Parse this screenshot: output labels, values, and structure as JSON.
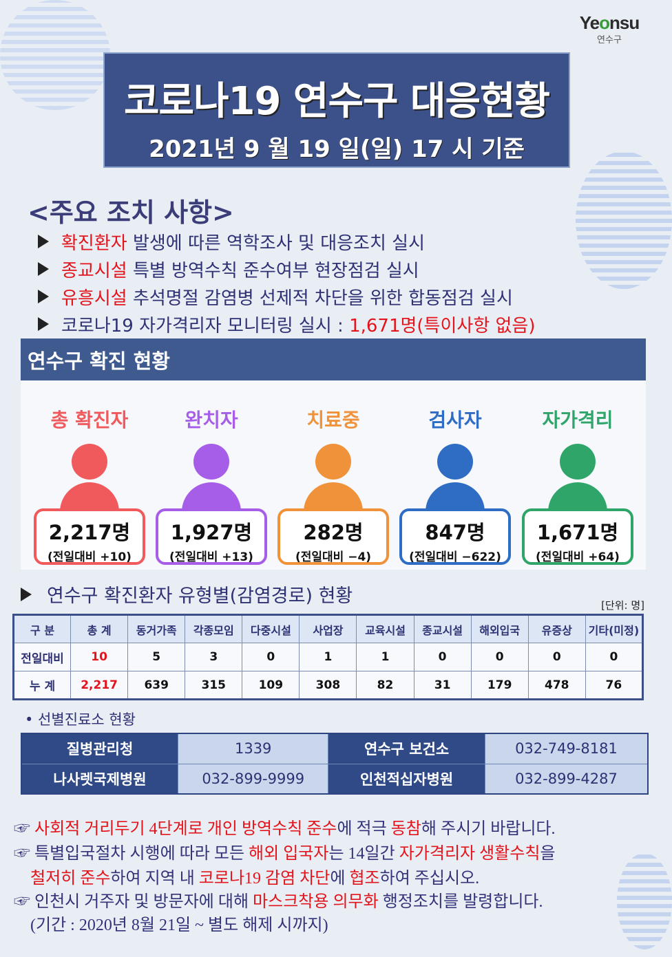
{
  "logo": {
    "main_a": "Ye",
    "main_b": "o",
    "main_c": "nsu",
    "sub": "연수구"
  },
  "title": {
    "main": "코로나19 연수구 대응현황",
    "date": "2021년 9 월 19 일(일) 17 시 기준"
  },
  "measures": {
    "title": "<주요 조치 사항>",
    "items": [
      [
        {
          "t": "확진환자",
          "red": true
        },
        {
          "t": " 발생에 따른 역학조사 및 대응조치 실시"
        }
      ],
      [
        {
          "t": "종교시설",
          "red": true
        },
        {
          "t": " 특별 방역수칙 준수여부 현장점검 실시"
        }
      ],
      [
        {
          "t": "유흥시설",
          "red": true
        },
        {
          "t": " 추석명절 감염병 선제적 차단을 위한 합동점검 실시"
        }
      ],
      [
        {
          "t": "코로나19 자가격리자 모니터링 실시 : "
        },
        {
          "t": "1,671명(특이사항 없음)",
          "red": true
        }
      ]
    ]
  },
  "status": {
    "section_title": "연수구 확진 현황",
    "cards": [
      {
        "label": "총 확진자",
        "value": "2,217명",
        "diff": "(전일대비 +10)",
        "color": "#f05a5c"
      },
      {
        "label": "완치자",
        "value": "1,927명",
        "diff": "(전일대비 +13)",
        "color": "#a65ee8"
      },
      {
        "label": "치료중",
        "value": "282명",
        "diff": "(전일대비 −4)",
        "color": "#f0923a"
      },
      {
        "label": "검사자",
        "value": "847명",
        "diff": "(전일대비 −622)",
        "color": "#2f6cc4"
      },
      {
        "label": "자가격리",
        "value": "1,671명",
        "diff": "(전일대비 +64)",
        "color": "#2fa56a"
      }
    ]
  },
  "table": {
    "title": "연수구 확진환자 유형별(감염경로) 현황",
    "unit": "[단위: 명]",
    "headers": [
      "구 분",
      "총 계",
      "동거가족",
      "각종모임",
      "다중시설",
      "사업장",
      "교육시설",
      "종교시설",
      "해외입국",
      "유증상",
      "기타(미정)"
    ],
    "rows": [
      [
        "전일대비",
        "10",
        "5",
        "3",
        "0",
        "1",
        "1",
        "0",
        "0",
        "0",
        "0"
      ],
      [
        "누   계",
        "2,217",
        "639",
        "315",
        "109",
        "308",
        "82",
        "31",
        "179",
        "478",
        "76"
      ]
    ]
  },
  "clinics": {
    "title": "• 선별진료소 현황",
    "rows": [
      [
        "질병관리청",
        "1339",
        "연수구 보건소",
        "032-749-8181"
      ],
      [
        "나사렛국제병원",
        "032-899-9999",
        "인천적십자병원",
        "032-899-4287"
      ]
    ]
  },
  "notices": [
    [
      {
        "t": "☞ "
      },
      {
        "t": "사회적 거리두기 4단계로 개인 방역수칙 준수",
        "red": true
      },
      {
        "t": "에 적극 "
      },
      {
        "t": "동참",
        "red": true
      },
      {
        "t": "해 주시기 바랍니다."
      }
    ],
    [
      {
        "t": "☞ 특별입국절차 시행에 따라 모든 "
      },
      {
        "t": "해외 입국자",
        "red": true
      },
      {
        "t": "는 14일간 "
      },
      {
        "t": "자가격리자 생활수칙",
        "red": true
      },
      {
        "t": "을"
      }
    ],
    [
      {
        "t": "    "
      },
      {
        "t": "철저히 준수",
        "red": true
      },
      {
        "t": "하여 지역 내 "
      },
      {
        "t": "코로나19 감염 차단",
        "red": true
      },
      {
        "t": "에 "
      },
      {
        "t": "협조",
        "red": true
      },
      {
        "t": "하여 주십시오."
      }
    ],
    [
      {
        "t": "☞ 인천시 거주자 및 방문자에 대해 "
      },
      {
        "t": "마스크착용 의무화",
        "red": true
      },
      {
        "t": " 행정조치를 발령합니다."
      }
    ],
    [
      {
        "t": "    (기간 : 2020년 8월 21일 ~ 별도 해제 시까지)"
      }
    ]
  ]
}
